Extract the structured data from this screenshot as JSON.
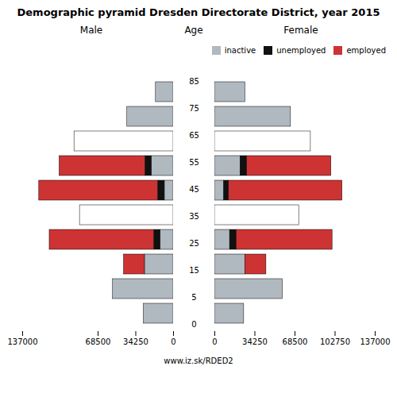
{
  "title": "Demographic pyramid Dresden Directorate District, year 2015",
  "annotations": [
    "www.iz.sk/RDED2"
  ],
  "chart_data": [
    {
      "type": "bar",
      "title": "Male",
      "orientation": "horizontal",
      "stacked": true,
      "ylabel": "Age",
      "categories": [
        "85",
        "75",
        "65",
        "55",
        "45",
        "35",
        "25",
        "15",
        "5",
        "0"
      ],
      "series": [
        {
          "name": "inactive",
          "color": "#b0b8c0",
          "colors": [
            "#b0b8c0",
            "#b0b8c0",
            "#ffffff",
            "#b0b8c0",
            "#b0b8c0",
            "#ffffff",
            "#b0b8c0",
            "#b0b8c0",
            "#b0b8c0",
            "#b0b8c0"
          ],
          "values": [
            16000,
            42000,
            90000,
            20000,
            8000,
            85000,
            12000,
            26000,
            55000,
            27000
          ]
        },
        {
          "name": "unemployed",
          "color": "#111111",
          "values": [
            0,
            0,
            0,
            5500,
            6000,
            0,
            5500,
            0,
            0,
            0
          ]
        },
        {
          "name": "employed",
          "color": "#cd3333",
          "values": [
            0,
            0,
            0,
            78000,
            108000,
            0,
            95000,
            19000,
            0,
            0
          ]
        }
      ],
      "xlim": [
        137000,
        0
      ],
      "xticks": [
        137000,
        68500,
        34250,
        0
      ]
    },
    {
      "type": "bar",
      "title": "Female",
      "orientation": "horizontal",
      "stacked": true,
      "tick_labels": "x",
      "legend": "upper right",
      "categories": [
        "85",
        "75",
        "65",
        "55",
        "45",
        "35",
        "25",
        "15",
        "5",
        "0"
      ],
      "series": [
        {
          "name": "inactive",
          "color": "#b0b8c0",
          "colors": [
            "#b0b8c0",
            "#b0b8c0",
            "#ffffff",
            "#b0b8c0",
            "#b0b8c0",
            "#ffffff",
            "#b0b8c0",
            "#b0b8c0",
            "#b0b8c0",
            "#b0b8c0"
          ],
          "values": [
            26000,
            65000,
            82000,
            22000,
            8000,
            72000,
            13000,
            26000,
            58000,
            25000
          ]
        },
        {
          "name": "unemployed",
          "color": "#111111",
          "values": [
            0,
            0,
            0,
            5500,
            4000,
            0,
            5500,
            0,
            0,
            0
          ]
        },
        {
          "name": "employed",
          "color": "#cd3333",
          "values": [
            0,
            0,
            0,
            72000,
            97000,
            0,
            82000,
            18000,
            0,
            0
          ]
        }
      ],
      "xlim": [
        0,
        137000
      ],
      "xticks": [
        0,
        34250,
        68500,
        102750,
        137000
      ]
    }
  ]
}
